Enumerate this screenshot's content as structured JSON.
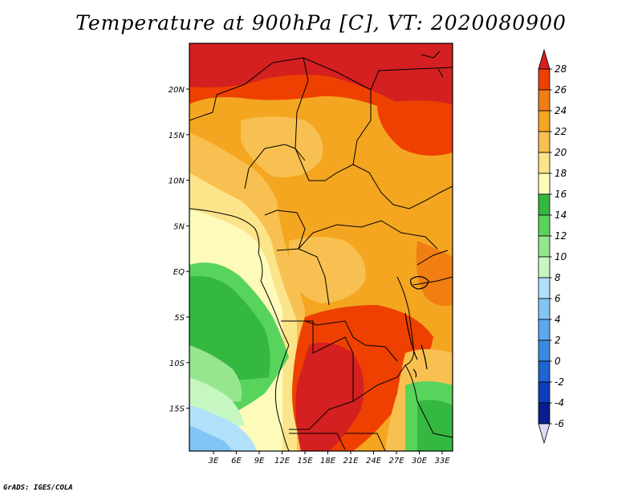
{
  "title": "Temperature at 900hPa [C], VT: 2020080900",
  "footer": "GrADS: IGES/COLA",
  "map": {
    "lon_labels": [
      "3E",
      "6E",
      "9E",
      "12E",
      "15E",
      "18E",
      "21E",
      "24E",
      "27E",
      "30E",
      "33E"
    ],
    "lat_labels": [
      "20N",
      "15N",
      "10N",
      "5N",
      "EQ",
      "5S",
      "10S",
      "15S"
    ]
  },
  "colorbar": {
    "levels": [
      "28",
      "26",
      "24",
      "22",
      "20",
      "18",
      "16",
      "14",
      "12",
      "10",
      "8",
      "6",
      "4",
      "2",
      "0",
      "-2",
      "-4",
      "-6"
    ],
    "colors": [
      "#d42020",
      "#ee4000",
      "#f07e12",
      "#f4a620",
      "#f8c050",
      "#fce48a",
      "#fefbba",
      "#34b840",
      "#58d45c",
      "#96e690",
      "#c6f6c2",
      "#b0e0fa",
      "#82c4f4",
      "#5ca8ec",
      "#3c8ae0",
      "#1e64d2",
      "#0c3cb8",
      "#071e8c",
      "#0a0a50",
      "#dcdcf8"
    ],
    "max_triangle_color": "#d42020",
    "min_triangle_color": "#dcdcf8"
  }
}
